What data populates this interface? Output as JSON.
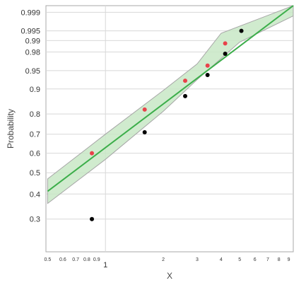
{
  "chart_data": {
    "type": "scatter",
    "xlabel": "X",
    "ylabel": "Probability",
    "x_scale": "log",
    "y_scale": "weibull-probability",
    "xlim": [
      0.49,
      9.5
    ],
    "ylim": [
      0.2,
      0.9995
    ],
    "x_ticks_minor": [
      0.5,
      0.6,
      0.7,
      0.8,
      0.9,
      2,
      3,
      4,
      5,
      6,
      7,
      8,
      9
    ],
    "x_ticks_major": [
      1
    ],
    "y_ticks": [
      0.3,
      0.4,
      0.5,
      0.6,
      0.7,
      0.8,
      0.9,
      0.95,
      0.98,
      0.99,
      0.995,
      0.999
    ],
    "grid": true,
    "colors": {
      "fit_line": "#3cae4a",
      "confidence_band": "#c8e8c6",
      "black_points": "#000000",
      "red_points": "#e8424a",
      "grid": "#d8d8d8"
    },
    "series": [
      {
        "color": "#000000",
        "points": [
          {
            "x": 0.85,
            "y": 0.3
          },
          {
            "x": 1.6,
            "y": 0.71
          },
          {
            "x": 2.6,
            "y": 0.875
          },
          {
            "x": 3.4,
            "y": 0.94
          },
          {
            "x": 4.2,
            "y": 0.978
          },
          {
            "x": 5.1,
            "y": 0.995
          }
        ]
      },
      {
        "color": "#e8424a",
        "points": [
          {
            "x": 0.85,
            "y": 0.6
          },
          {
            "x": 1.6,
            "y": 0.82
          },
          {
            "x": 2.6,
            "y": 0.925
          },
          {
            "x": 3.4,
            "y": 0.96
          },
          {
            "x": 4.2,
            "y": 0.988
          }
        ]
      }
    ],
    "fit_line": [
      {
        "x": 0.5,
        "y": 0.412
      },
      {
        "x": 9.5,
        "y": 0.9995
      }
    ],
    "confidence_band": {
      "lower": [
        {
          "x": 0.5,
          "y": 0.36
        },
        {
          "x": 1,
          "y": 0.568
        },
        {
          "x": 2,
          "y": 0.812
        },
        {
          "x": 3,
          "y": 0.928
        },
        {
          "x": 5,
          "y": 0.989
        },
        {
          "x": 9.5,
          "y": 0.9986
        }
      ],
      "upper": [
        {
          "x": 0.5,
          "y": 0.47
        },
        {
          "x": 1,
          "y": 0.7
        },
        {
          "x": 2,
          "y": 0.895
        },
        {
          "x": 3,
          "y": 0.963
        },
        {
          "x": 4,
          "y": 0.994
        },
        {
          "x": 9.5,
          "y": 0.9995
        }
      ]
    }
  }
}
